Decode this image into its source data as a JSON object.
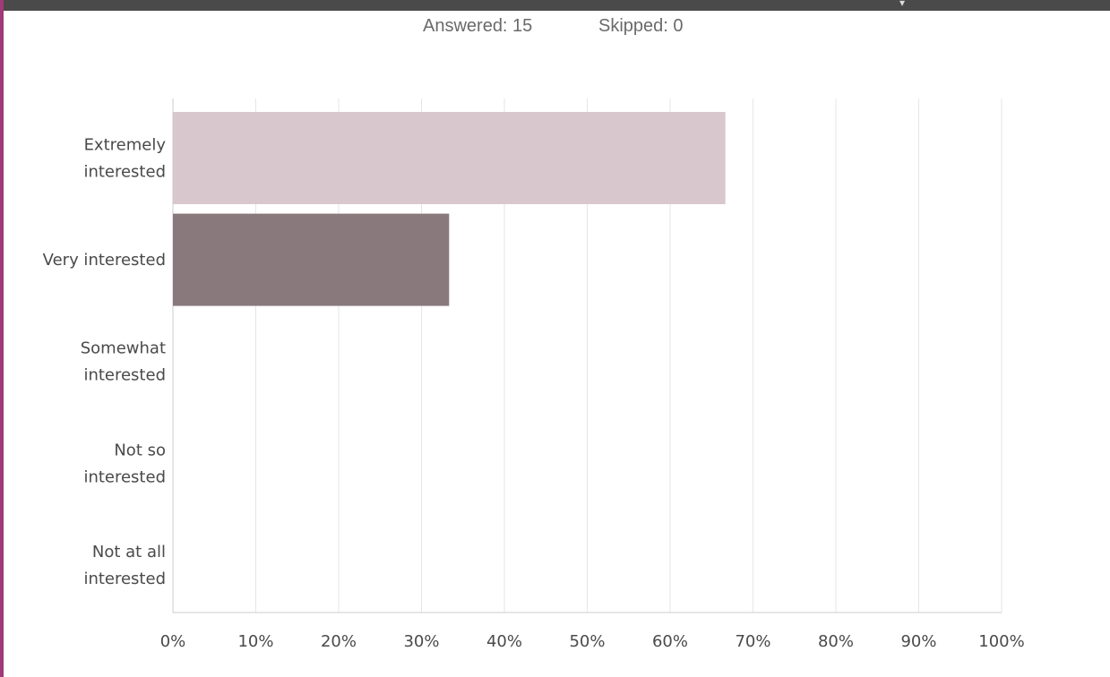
{
  "summary": {
    "answered_label": "Answered: 15",
    "skipped_label": "Skipped: 0"
  },
  "chart_data": {
    "type": "bar",
    "orientation": "horizontal",
    "categories": [
      [
        "Extremely",
        "interested"
      ],
      [
        "Very interested"
      ],
      [
        "Somewhat",
        "interested"
      ],
      [
        "Not so",
        "interested"
      ],
      [
        "Not at all",
        "interested"
      ]
    ],
    "values": [
      66.67,
      33.33,
      0,
      0,
      0
    ],
    "value_unit": "percent",
    "xlim": [
      0,
      100
    ],
    "x_ticks": [
      "0%",
      "10%",
      "20%",
      "30%",
      "40%",
      "50%",
      "60%",
      "70%",
      "80%",
      "90%",
      "100%"
    ],
    "grid": "vertical",
    "bar_colors": [
      "#d8c7cc",
      "#89797d",
      "#d8c7cc",
      "#89797d",
      "#d8c7cc"
    ],
    "legend": "none"
  },
  "colors": {
    "gridline": "#e6e6e6",
    "axis": "#cccccc",
    "label": "#4a4a4a",
    "frame_accent": "#a03a78"
  }
}
